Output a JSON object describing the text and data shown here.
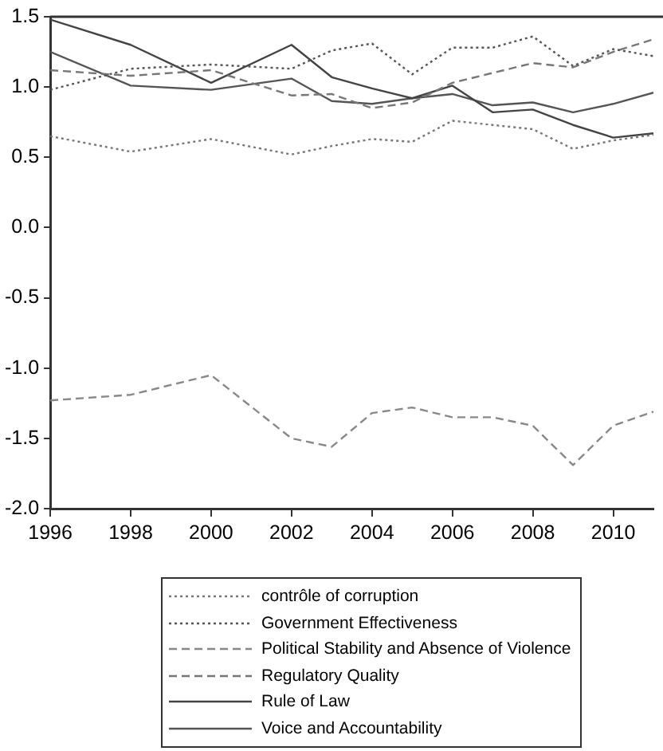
{
  "chart_data": {
    "type": "line",
    "x": [
      1996,
      1998,
      2000,
      2002,
      2003,
      2004,
      2005,
      2006,
      2007,
      2008,
      2009,
      2010,
      2011
    ],
    "series": [
      {
        "name": "contrôle of corruption",
        "color": "#777777",
        "line_style": "dotted",
        "values": [
          0.65,
          0.54,
          0.63,
          0.52,
          0.58,
          0.63,
          0.61,
          0.76,
          0.73,
          0.7,
          0.56,
          0.62,
          0.66
        ]
      },
      {
        "name": "Government Effectiveness",
        "color": "#555555",
        "line_style": "dotted",
        "values": [
          0.98,
          1.13,
          1.16,
          1.13,
          1.26,
          1.31,
          1.09,
          1.28,
          1.28,
          1.36,
          1.15,
          1.27,
          1.22
        ]
      },
      {
        "name": "Political Stability and Absence of Violence",
        "color": "#888888",
        "line_style": "dashed",
        "values": [
          -1.23,
          -1.19,
          -1.05,
          -1.5,
          -1.56,
          -1.32,
          -1.28,
          -1.35,
          -1.35,
          -1.41,
          -1.69,
          -1.41,
          -1.31
        ]
      },
      {
        "name": "Regulatory Quality",
        "color": "#777777",
        "line_style": "dashed",
        "values": [
          1.12,
          1.08,
          1.12,
          0.94,
          0.95,
          0.85,
          0.89,
          1.03,
          1.1,
          1.17,
          1.14,
          1.25,
          1.34
        ]
      },
      {
        "name": "Rule of Law",
        "color": "#444444",
        "line_style": "solid",
        "values": [
          1.48,
          1.3,
          1.03,
          1.3,
          1.07,
          0.99,
          0.92,
          1.01,
          0.82,
          0.84,
          0.73,
          0.64,
          0.67
        ]
      },
      {
        "name": "Voice and Accountability",
        "color": "#555555",
        "line_style": "solid",
        "values": [
          1.25,
          1.01,
          0.98,
          1.06,
          0.9,
          0.88,
          0.92,
          0.95,
          0.87,
          0.89,
          0.82,
          0.88,
          0.96
        ]
      }
    ],
    "xlim": [
      1996,
      2011
    ],
    "xticks": [
      1996,
      1998,
      2000,
      2002,
      2004,
      2006,
      2008,
      2010
    ],
    "ylim": [
      -2.0,
      1.5
    ],
    "yticks": [
      {
        "value": -2,
        "label": "-2.0"
      },
      -1.5,
      {
        "value": -1,
        "label": "-1.0"
      },
      -0.5,
      {
        "value": 0,
        "label": "0.0"
      },
      0.5,
      {
        "value": 1,
        "label": "1.0"
      },
      1.5
    ],
    "grid": false,
    "legend": "bottom",
    "marker": "none"
  }
}
